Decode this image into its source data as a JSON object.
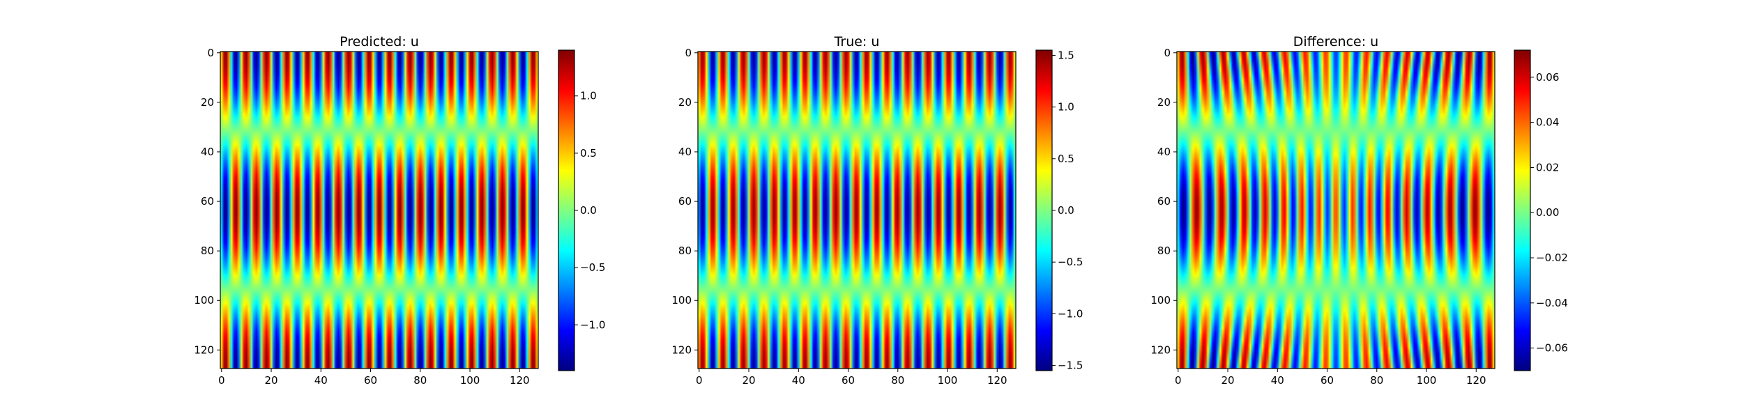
{
  "chart_data": [
    {
      "type": "heatmap",
      "title": "Predicted: u",
      "field": "predicted",
      "x_ticks": [
        "0",
        "20",
        "40",
        "60",
        "80",
        "100",
        "120"
      ],
      "y_ticks": [
        "0",
        "20",
        "40",
        "60",
        "80",
        "100",
        "120"
      ],
      "xlim": [
        0,
        128
      ],
      "ylim": [
        128,
        0
      ],
      "colorbar": {
        "colormap": "jet",
        "range": [
          -1.4,
          1.4
        ],
        "ticks": [
          {
            "value": 1.0,
            "label": "1.0"
          },
          {
            "value": 0.5,
            "label": "0.5"
          },
          {
            "value": 0.0,
            "label": "0.0"
          },
          {
            "value": -0.5,
            "label": "−0.5"
          },
          {
            "value": -1.0,
            "label": "−1.0"
          }
        ]
      },
      "amplitude": 1.4
    },
    {
      "type": "heatmap",
      "title": "True: u",
      "field": "true",
      "x_ticks": [
        "0",
        "20",
        "40",
        "60",
        "80",
        "100",
        "120"
      ],
      "y_ticks": [
        "0",
        "20",
        "40",
        "60",
        "80",
        "100",
        "120"
      ],
      "xlim": [
        0,
        128
      ],
      "ylim": [
        128,
        0
      ],
      "colorbar": {
        "colormap": "jet",
        "range": [
          -1.55,
          1.55
        ],
        "ticks": [
          {
            "value": 1.5,
            "label": "1.5"
          },
          {
            "value": 1.0,
            "label": "1.0"
          },
          {
            "value": 0.5,
            "label": "0.5"
          },
          {
            "value": 0.0,
            "label": "0.0"
          },
          {
            "value": -0.5,
            "label": "−0.5"
          },
          {
            "value": -1.0,
            "label": "−1.0"
          },
          {
            "value": -1.5,
            "label": "−1.5"
          }
        ]
      },
      "amplitude": 1.5
    },
    {
      "type": "heatmap",
      "title": "Difference: u",
      "field": "difference",
      "x_ticks": [
        "0",
        "20",
        "40",
        "60",
        "80",
        "100",
        "120"
      ],
      "y_ticks": [
        "0",
        "20",
        "40",
        "60",
        "80",
        "100",
        "120"
      ],
      "xlim": [
        0,
        128
      ],
      "ylim": [
        128,
        0
      ],
      "colorbar": {
        "colormap": "jet",
        "range": [
          -0.07,
          0.072
        ],
        "ticks": [
          {
            "value": 0.06,
            "label": "0.06"
          },
          {
            "value": 0.04,
            "label": "0.04"
          },
          {
            "value": 0.02,
            "label": "0.02"
          },
          {
            "value": 0.0,
            "label": "0.00"
          },
          {
            "value": -0.02,
            "label": "−0.02"
          },
          {
            "value": -0.04,
            "label": "−0.04"
          },
          {
            "value": -0.06,
            "label": "−0.06"
          }
        ]
      },
      "amplitude": 0.07
    }
  ]
}
